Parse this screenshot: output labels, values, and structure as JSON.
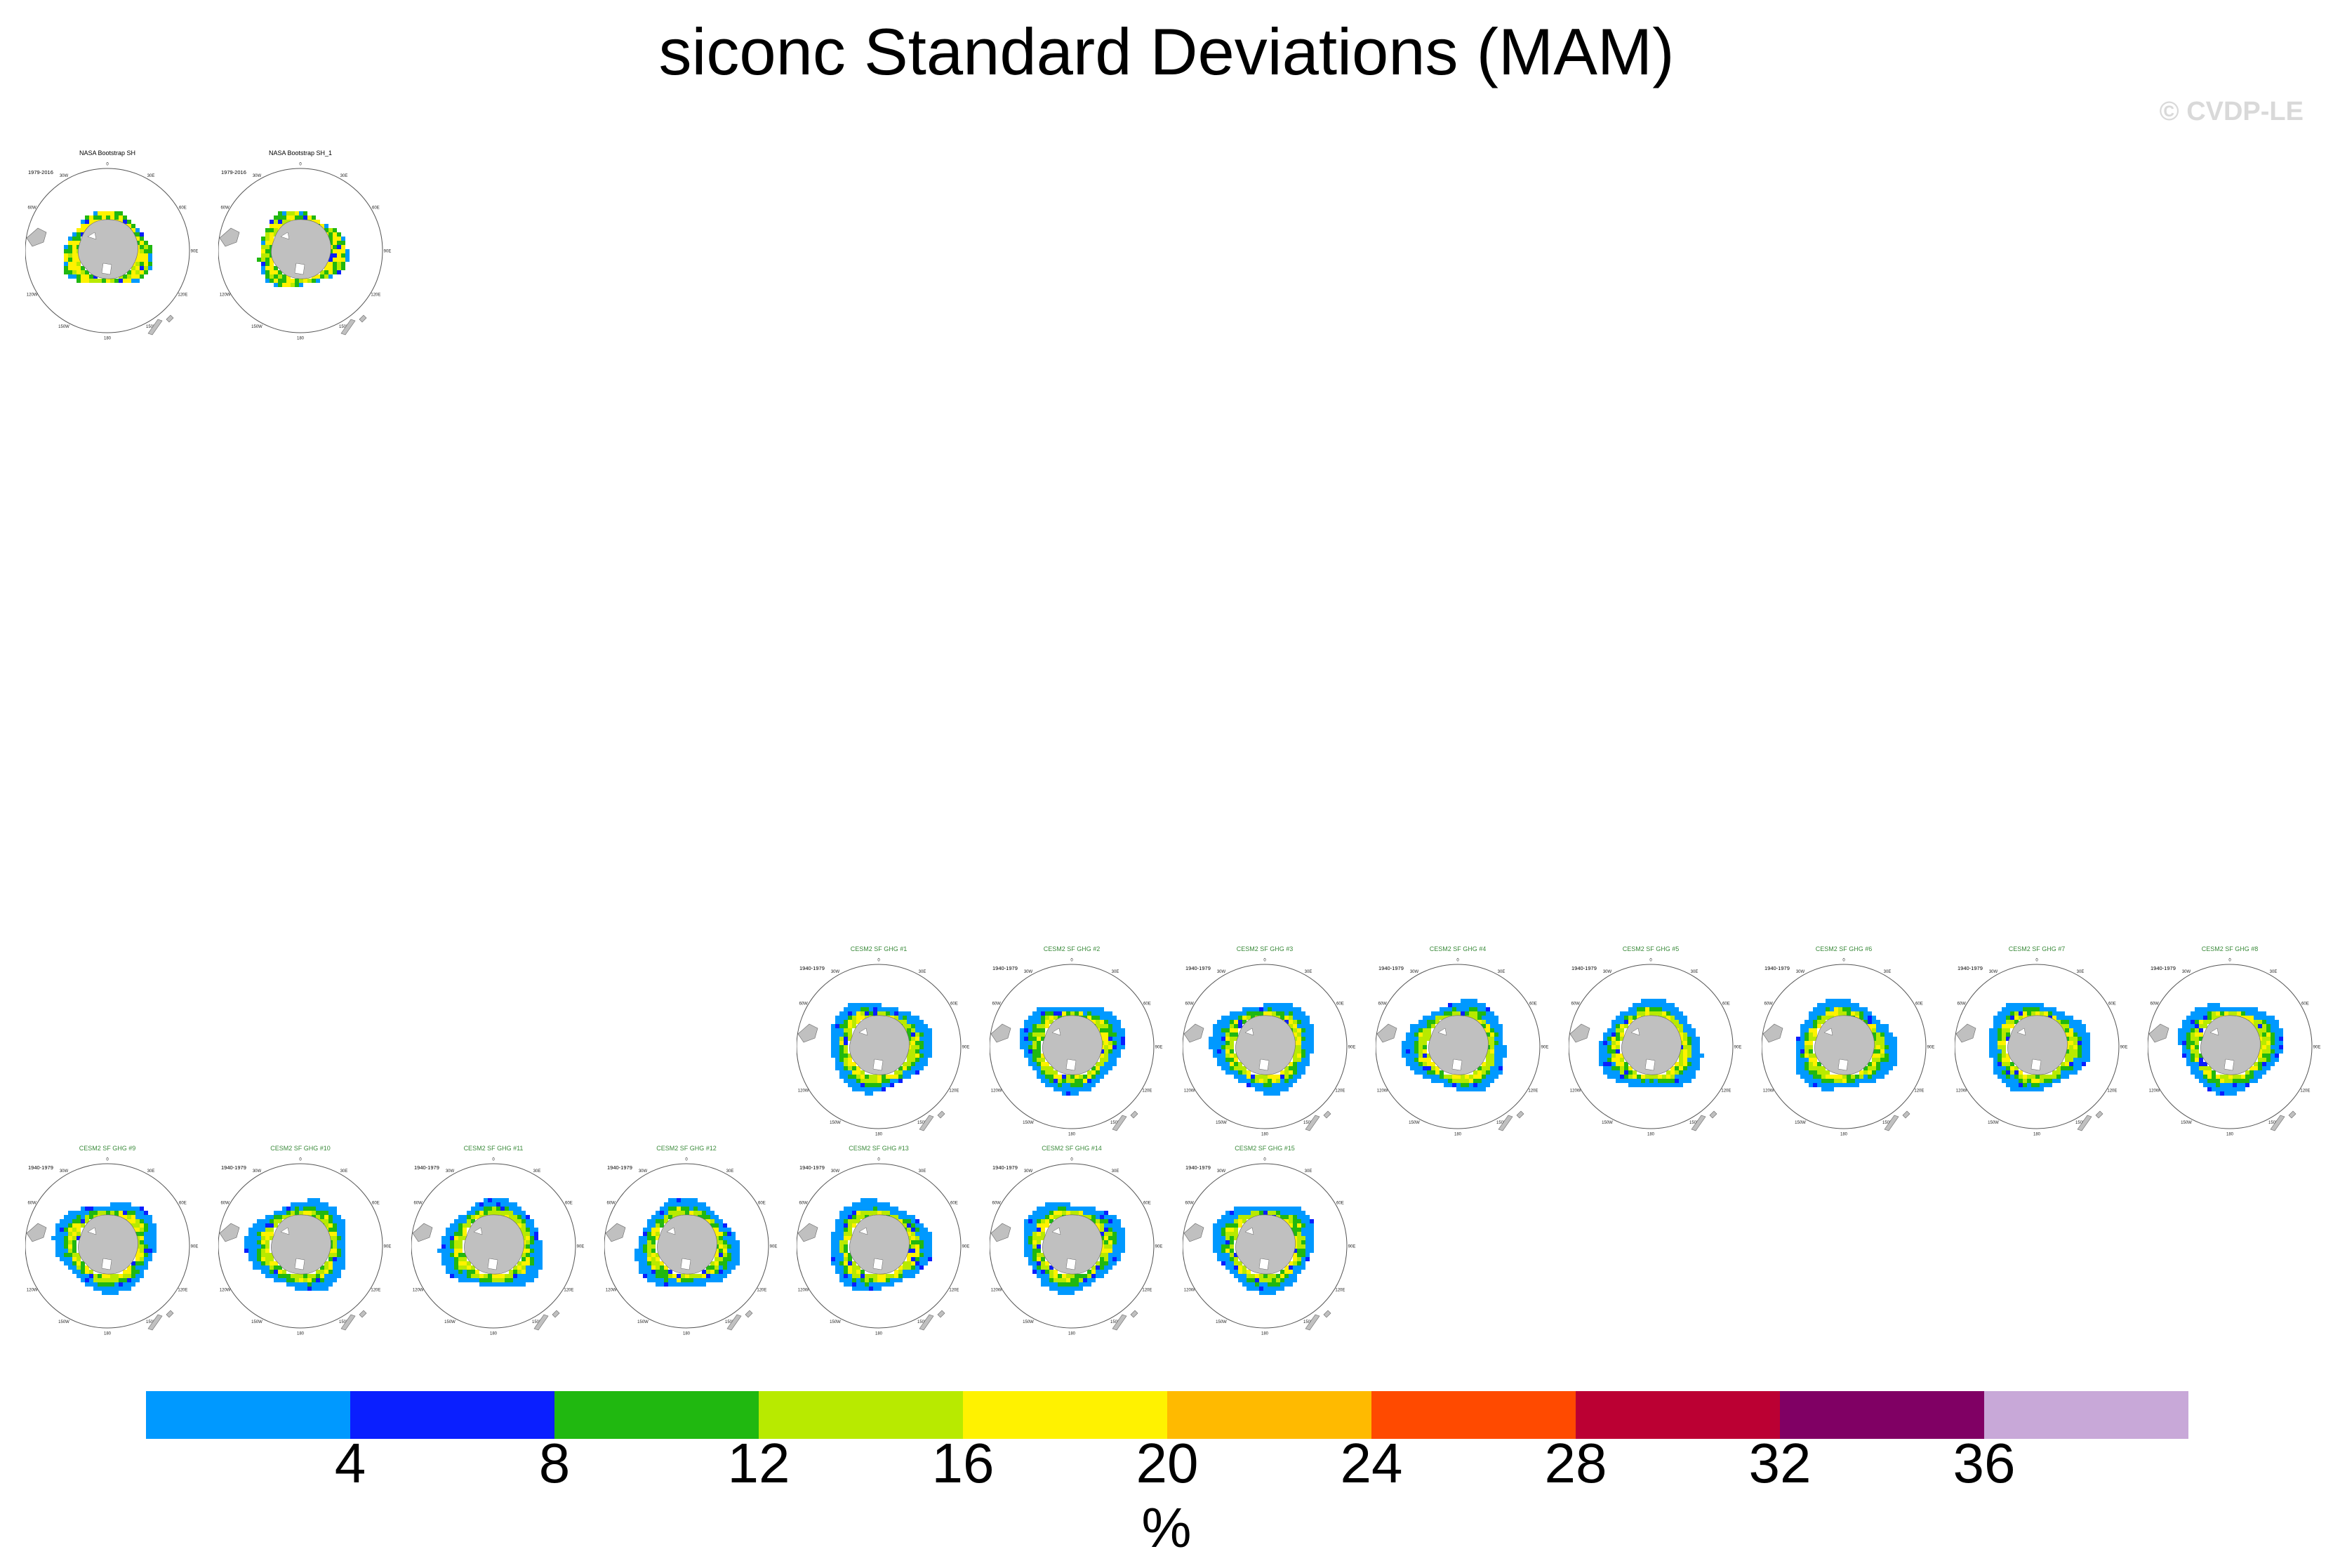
{
  "title": "siconc Standard Deviations (MAM)",
  "watermark": "© CVDP-LE",
  "lon_labels": [
    "0",
    "30E",
    "60E",
    "90E",
    "120E",
    "150E",
    "180",
    "150W",
    "120W",
    "90W",
    "60W",
    "30W"
  ],
  "observations": {
    "period": "1979-2016",
    "panels": [
      "NASA Bootstrap SH",
      "NASA Bootstrap SH_1"
    ]
  },
  "ensemble": {
    "period": "1940-1979",
    "label_color": "#3a8a3a",
    "panels": [
      "CESM2 SF GHG #1",
      "CESM2 SF GHG #2",
      "CESM2 SF GHG #3",
      "CESM2 SF GHG #4",
      "CESM2 SF GHG #5",
      "CESM2 SF GHG #6",
      "CESM2 SF GHG #7",
      "CESM2 SF GHG #8",
      "CESM2 SF GHG #9",
      "CESM2 SF GHG #10",
      "CESM2 SF GHG #11",
      "CESM2 SF GHG #12",
      "CESM2 SF GHG #13",
      "CESM2 SF GHG #14",
      "CESM2 SF GHG #15"
    ]
  },
  "land_color": "#c0c0c0",
  "chart_data": {
    "type": "heatmap",
    "title": "siconc Standard Deviations (MAM)",
    "colorbar": {
      "label": "%",
      "ticks": [
        "4",
        "8",
        "12",
        "16",
        "20",
        "24",
        "28",
        "32",
        "36"
      ],
      "bins": [
        {
          "range": "<4",
          "color": "#0099ff"
        },
        {
          "range": "4-8",
          "color": "#0a1fff"
        },
        {
          "range": "8-12",
          "color": "#20b810"
        },
        {
          "range": "12-16",
          "color": "#b8ea00"
        },
        {
          "range": "16-20",
          "color": "#fff200"
        },
        {
          "range": "20-24",
          "color": "#ffba00"
        },
        {
          "range": "24-28",
          "color": "#ff4a00"
        },
        {
          "range": "28-32",
          "color": "#bb0033"
        },
        {
          "range": "32-36",
          "color": "#800064"
        },
        {
          "range": ">36",
          "color": "#c8a8d8"
        }
      ]
    }
  }
}
